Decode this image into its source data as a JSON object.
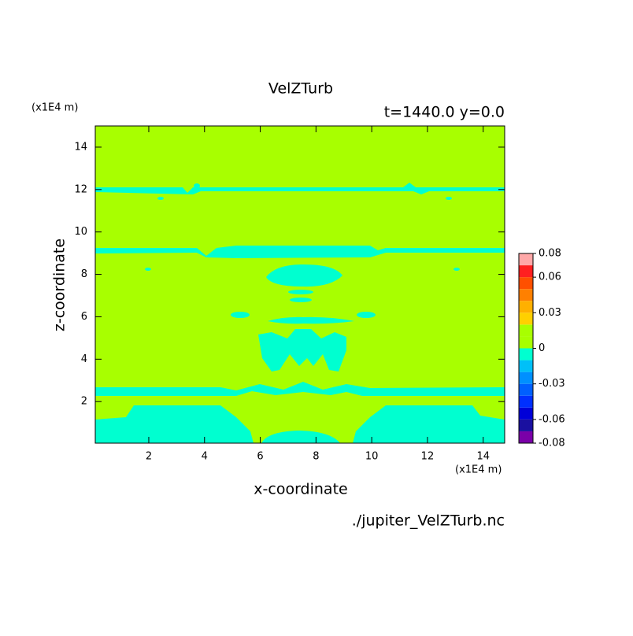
{
  "chart_data": {
    "type": "contour",
    "title": "VelZTurb",
    "subtitle": "t=1440.0 y=0.0",
    "x_label": "x-coordinate",
    "y_label": "z-coordinate",
    "x_unit": "(x1E4 m)",
    "y_unit": "(x1E4 m)",
    "file_label": "./jupiter_VelZTurb.nc",
    "xlim": [
      0.08,
      14.77
    ],
    "ylim": [
      0.04,
      15
    ],
    "xticks": [
      2,
      4,
      6,
      8,
      10,
      12,
      14
    ],
    "yticks": [
      2,
      4,
      6,
      8,
      10,
      12,
      14
    ],
    "colorbar": {
      "levels": [
        -0.08,
        -0.07,
        -0.06,
        -0.05,
        -0.04,
        -0.03,
        -0.02,
        -0.01,
        0,
        0.01,
        0.02,
        0.03,
        0.04,
        0.05,
        0.06,
        0.07,
        0.08
      ],
      "colors": [
        "#7a00a8",
        "#1a10a0",
        "#0000d8",
        "#0030ff",
        "#0060ff",
        "#0090ff",
        "#00c0f8",
        "#00ffd0",
        "#a8ff00",
        "#a8ff00",
        "#ffd000",
        "#ffb000",
        "#ff8000",
        "#ff5000",
        "#ff2020",
        "#ffa8a8"
      ],
      "ticks": [
        0.08,
        0.06,
        0.03,
        0,
        -0.03,
        -0.06,
        -0.08
      ]
    }
  }
}
